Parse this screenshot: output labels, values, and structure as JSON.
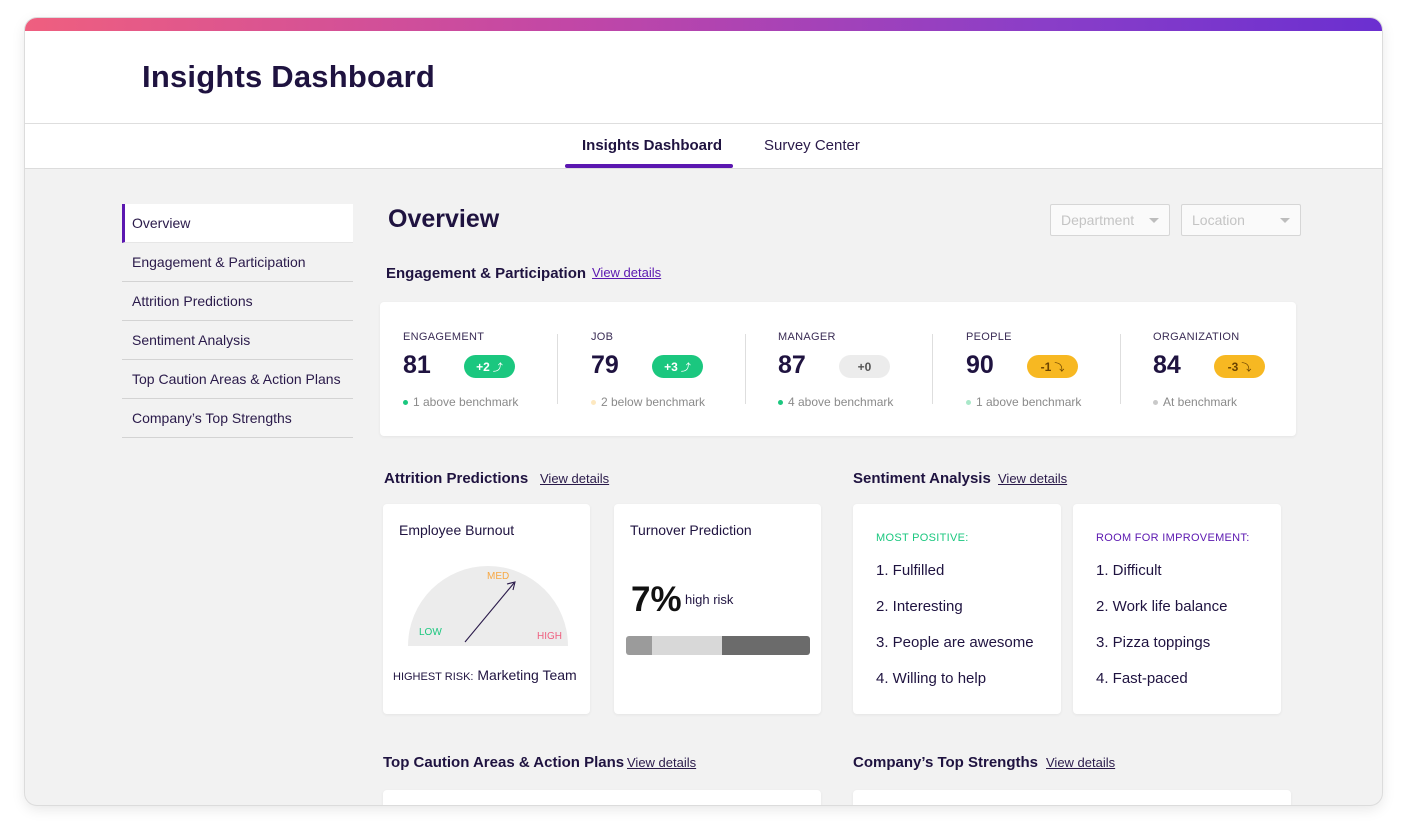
{
  "app": {
    "title": "Insights Dashboard"
  },
  "tabs": [
    {
      "label": "Insights Dashboard",
      "active": true
    },
    {
      "label": "Survey Center",
      "active": false
    }
  ],
  "sidebar": {
    "items": [
      {
        "label": "Overview",
        "active": true
      },
      {
        "label": "Engagement & Participation"
      },
      {
        "label": "Attrition Predictions"
      },
      {
        "label": "Sentiment Analysis"
      },
      {
        "label": "Top Caution Areas & Action Plans"
      },
      {
        "label": "Company’s Top Strengths"
      }
    ]
  },
  "main": {
    "title": "Overview",
    "filters": [
      {
        "placeholder": "Department"
      },
      {
        "placeholder": "Location"
      }
    ]
  },
  "engagement": {
    "title": "Engagement & Participation",
    "link": "View details",
    "metrics": [
      {
        "label": "ENGAGEMENT",
        "value": "81",
        "delta": "+2",
        "trend": "up",
        "bench": "1 above benchmark",
        "dot": "#1bc77f"
      },
      {
        "label": "JOB",
        "value": "79",
        "delta": "+3",
        "trend": "up",
        "bench": "2 below benchmark",
        "dot": "#fde8c0"
      },
      {
        "label": "MANAGER",
        "value": "87",
        "delta": "+0",
        "trend": "flat",
        "bench": "4 above benchmark",
        "dot": "#1bc77f"
      },
      {
        "label": "PEOPLE",
        "value": "90",
        "delta": "-1",
        "trend": "down",
        "bench": "1 above benchmark",
        "dot": "#a9e8c9"
      },
      {
        "label": "ORGANIZATION",
        "value": "84",
        "delta": "-3",
        "trend": "down",
        "bench": "At benchmark",
        "dot": "#c9c9c9"
      }
    ]
  },
  "attrition": {
    "title": "Attrition Predictions",
    "link": "View details",
    "burnout": {
      "title": "Employee Burnout",
      "low": "LOW",
      "med": "MED",
      "high": "HIGH",
      "risk_prefix": "HIGHEST RISK:",
      "risk_value": "Marketing Team",
      "colors": {
        "low": "#1bc77f",
        "med": "#f7a844",
        "high": "#ef5f7f"
      }
    },
    "turnover": {
      "title": "Turnover Prediction",
      "value": "7%",
      "suffix": "high risk",
      "segments": [
        {
          "fraction": 0.14,
          "color": "#9b9b9b"
        },
        {
          "fraction": 0.38,
          "color": "#d8d8d8"
        },
        {
          "fraction": 0.48,
          "color": "#6b6b6b"
        }
      ]
    }
  },
  "sentiment": {
    "title": "Sentiment Analysis",
    "link": "View details",
    "positive": {
      "heading": "MOST POSITIVE:",
      "color": "#1bc77f",
      "items": [
        "1. Fulfilled",
        "2. Interesting",
        "3. People are awesome",
        "4. Willing to help"
      ]
    },
    "improvement": {
      "heading": "ROOM FOR IMPROVEMENT:",
      "color": "#5b17b0",
      "items": [
        "1. Difficult",
        "2. Work life balance",
        "3. Pizza toppings",
        "4. Fast-paced"
      ]
    }
  },
  "caution": {
    "title": "Top Caution Areas & Action Plans",
    "link": "View details"
  },
  "strengths": {
    "title": "Company’s Top Strengths",
    "link": "View details"
  }
}
